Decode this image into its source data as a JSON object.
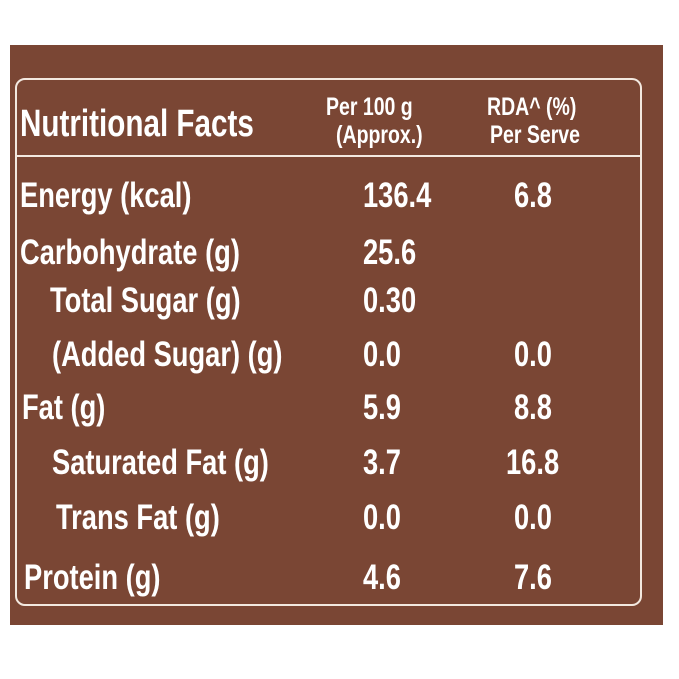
{
  "header": {
    "title": "Nutritional Facts",
    "col1_line1": "Per 100 g",
    "col1_line2": "(Approx.)",
    "col2_line1": "RDA^ (%)",
    "col2_line2": "Per Serve"
  },
  "rows": [
    {
      "label": "Energy (kcal)",
      "per100": "136.4",
      "rda": "6.8"
    },
    {
      "label": "Carbohydrate (g)",
      "per100": "25.6",
      "rda": ""
    },
    {
      "label": "Total Sugar (g)",
      "per100": "0.30",
      "rda": ""
    },
    {
      "label": "(Added Sugar) (g)",
      "per100": "0.0",
      "rda": "0.0"
    },
    {
      "label": "Fat (g)",
      "per100": "5.9",
      "rda": "8.8"
    },
    {
      "label": "Saturated Fat (g)",
      "per100": "3.7",
      "rda": "16.8"
    },
    {
      "label": "Trans Fat (g)",
      "per100": "0.0",
      "rda": "0.0"
    },
    {
      "label": "Protein (g)",
      "per100": "4.6",
      "rda": "7.6"
    }
  ],
  "colors": {
    "panel": "#7a4634",
    "text": "#ffffff",
    "border": "#f3e9e0"
  }
}
